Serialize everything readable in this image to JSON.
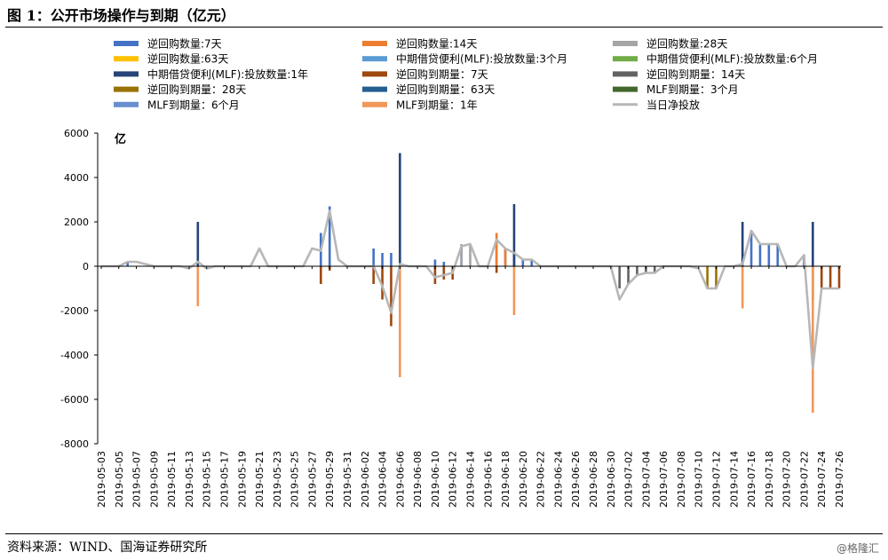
{
  "figure": {
    "title": "图 1：公开市场操作与到期（亿元）",
    "source": "资料来源：WIND、国海证券研究所",
    "watermark": "@格隆汇"
  },
  "chart_data": {
    "type": "bar",
    "unit_label": "亿",
    "ylim": [
      -8000,
      6000
    ],
    "yticks": [
      -8000,
      -6000,
      -4000,
      -2000,
      0,
      2000,
      4000,
      6000
    ],
    "grid": false,
    "legend_position": "top",
    "x_start": "2019-05-03",
    "x_end": "2019-07-26",
    "x_tick_labels": [
      "2019-05-03",
      "2019-05-05",
      "2019-05-07",
      "2019-05-09",
      "2019-05-11",
      "2019-05-13",
      "2019-05-15",
      "2019-05-17",
      "2019-05-19",
      "2019-05-21",
      "2019-05-23",
      "2019-05-25",
      "2019-05-27",
      "2019-05-29",
      "2019-05-31",
      "2019-06-02",
      "2019-06-04",
      "2019-06-06",
      "2019-06-08",
      "2019-06-10",
      "2019-06-12",
      "2019-06-14",
      "2019-06-16",
      "2019-06-18",
      "2019-06-20",
      "2019-06-22",
      "2019-06-24",
      "2019-06-26",
      "2019-06-28",
      "2019-06-30",
      "2019-07-02",
      "2019-07-04",
      "2019-07-06",
      "2019-07-08",
      "2019-07-10",
      "2019-07-12",
      "2019-07-14",
      "2019-07-16",
      "2019-07-18",
      "2019-07-20",
      "2019-07-22",
      "2019-07-24",
      "2019-07-26"
    ],
    "series": [
      {
        "name": "逆回购数量:7天",
        "type": "bar",
        "color": "#4472C4",
        "points": [
          [
            "2019-05-06",
            200
          ],
          [
            "2019-05-28",
            1500
          ],
          [
            "2019-05-29",
            2700
          ],
          [
            "2019-06-03",
            800
          ],
          [
            "2019-06-04",
            600
          ],
          [
            "2019-06-05",
            600
          ],
          [
            "2019-06-10",
            300
          ],
          [
            "2019-06-11",
            200
          ],
          [
            "2019-06-13",
            900
          ],
          [
            "2019-06-17",
            1000
          ],
          [
            "2019-06-18",
            800
          ],
          [
            "2019-06-19",
            600
          ],
          [
            "2019-06-20",
            300
          ],
          [
            "2019-06-21",
            300
          ],
          [
            "2019-07-16",
            1600
          ],
          [
            "2019-07-17",
            1000
          ],
          [
            "2019-07-18",
            1000
          ],
          [
            "2019-07-19",
            1000
          ],
          [
            "2019-07-22",
            500
          ]
        ]
      },
      {
        "name": "逆回购数量:14天",
        "type": "bar",
        "color": "#ED7D31",
        "points": [
          [
            "2019-06-17",
            1500
          ],
          [
            "2019-06-18",
            800
          ]
        ]
      },
      {
        "name": "逆回购数量:28天",
        "type": "bar",
        "color": "#A5A5A5",
        "points": [
          [
            "2019-06-13",
            1000
          ],
          [
            "2019-06-14",
            1000
          ]
        ]
      },
      {
        "name": "逆回购数量:63天",
        "type": "bar",
        "color": "#FFC000",
        "points": []
      },
      {
        "name": "中期借贷便利(MLF):投放数量:3个月",
        "type": "bar",
        "color": "#5B9BD5",
        "points": []
      },
      {
        "name": "中期借贷便利(MLF):投放数量:6个月",
        "type": "bar",
        "color": "#70AD47",
        "points": []
      },
      {
        "name": "中期借贷便利(MLF):投放数量:1年",
        "type": "bar",
        "color": "#264478",
        "points": [
          [
            "2019-05-14",
            2000
          ],
          [
            "2019-06-06",
            5100
          ],
          [
            "2019-06-19",
            2800
          ],
          [
            "2019-07-15",
            2000
          ],
          [
            "2019-07-23",
            2000
          ]
        ]
      },
      {
        "name": "逆回购到期量：7天",
        "type": "bar",
        "color": "#9E480E",
        "points": [
          [
            "2019-05-28",
            -800
          ],
          [
            "2019-05-29",
            -200
          ],
          [
            "2019-06-03",
            -800
          ],
          [
            "2019-06-04",
            -1500
          ],
          [
            "2019-06-05",
            -2700
          ],
          [
            "2019-06-10",
            -800
          ],
          [
            "2019-06-11",
            -600
          ],
          [
            "2019-06-12",
            -600
          ],
          [
            "2019-06-17",
            -300
          ],
          [
            "2019-07-23",
            -1500
          ],
          [
            "2019-07-24",
            -1000
          ],
          [
            "2019-07-25",
            -1000
          ],
          [
            "2019-07-26",
            -1000
          ]
        ]
      },
      {
        "name": "逆回购到期量：14天",
        "type": "bar",
        "color": "#636363",
        "points": [
          [
            "2019-07-01",
            -1000
          ],
          [
            "2019-07-02",
            -800
          ],
          [
            "2019-07-03",
            -400
          ],
          [
            "2019-07-04",
            -300
          ],
          [
            "2019-07-05",
            -300
          ]
        ]
      },
      {
        "name": "逆回购到期量：28天",
        "type": "bar",
        "color": "#997300",
        "points": [
          [
            "2019-07-11",
            -1000
          ],
          [
            "2019-07-12",
            -1000
          ]
        ]
      },
      {
        "name": "逆回购到期量：63天",
        "type": "bar",
        "color": "#255E91",
        "points": []
      },
      {
        "name": "MLF到期量：3个月",
        "type": "bar",
        "color": "#43682B",
        "points": []
      },
      {
        "name": "MLF到期量：6个月",
        "type": "bar",
        "color": "#698ED0",
        "points": []
      },
      {
        "name": "MLF到期量：1年",
        "type": "bar",
        "color": "#F1975A",
        "points": [
          [
            "2019-05-14",
            -1800
          ],
          [
            "2019-06-06",
            -5000
          ],
          [
            "2019-06-19",
            -2200
          ],
          [
            "2019-07-15",
            -1900
          ],
          [
            "2019-07-23",
            -6600
          ]
        ]
      },
      {
        "name": "当日净投放",
        "type": "line",
        "color": "#B7B7B7",
        "points": [
          [
            "2019-05-03",
            0
          ],
          [
            "2019-05-04",
            0
          ],
          [
            "2019-05-05",
            0
          ],
          [
            "2019-05-06",
            200
          ],
          [
            "2019-05-07",
            200
          ],
          [
            "2019-05-08",
            100
          ],
          [
            "2019-05-09",
            0
          ],
          [
            "2019-05-10",
            0
          ],
          [
            "2019-05-11",
            0
          ],
          [
            "2019-05-12",
            0
          ],
          [
            "2019-05-13",
            -100
          ],
          [
            "2019-05-14",
            200
          ],
          [
            "2019-05-15",
            -100
          ],
          [
            "2019-05-16",
            0
          ],
          [
            "2019-05-17",
            0
          ],
          [
            "2019-05-18",
            0
          ],
          [
            "2019-05-19",
            0
          ],
          [
            "2019-05-20",
            0
          ],
          [
            "2019-05-21",
            800
          ],
          [
            "2019-05-22",
            0
          ],
          [
            "2019-05-23",
            0
          ],
          [
            "2019-05-24",
            0
          ],
          [
            "2019-05-25",
            0
          ],
          [
            "2019-05-26",
            0
          ],
          [
            "2019-05-27",
            800
          ],
          [
            "2019-05-28",
            700
          ],
          [
            "2019-05-29",
            2500
          ],
          [
            "2019-05-30",
            300
          ],
          [
            "2019-05-31",
            0
          ],
          [
            "2019-06-01",
            0
          ],
          [
            "2019-06-02",
            0
          ],
          [
            "2019-06-03",
            0
          ],
          [
            "2019-06-04",
            -900
          ],
          [
            "2019-06-05",
            -2100
          ],
          [
            "2019-06-06",
            100
          ],
          [
            "2019-06-07",
            0
          ],
          [
            "2019-06-08",
            0
          ],
          [
            "2019-06-09",
            0
          ],
          [
            "2019-06-10",
            -500
          ],
          [
            "2019-06-11",
            -400
          ],
          [
            "2019-06-12",
            -300
          ],
          [
            "2019-06-13",
            900
          ],
          [
            "2019-06-14",
            1000
          ],
          [
            "2019-06-15",
            0
          ],
          [
            "2019-06-16",
            0
          ],
          [
            "2019-06-17",
            1200
          ],
          [
            "2019-06-18",
            800
          ],
          [
            "2019-06-19",
            600
          ],
          [
            "2019-06-20",
            300
          ],
          [
            "2019-06-21",
            300
          ],
          [
            "2019-06-22",
            0
          ],
          [
            "2019-06-23",
            0
          ],
          [
            "2019-06-24",
            0
          ],
          [
            "2019-06-25",
            0
          ],
          [
            "2019-06-26",
            0
          ],
          [
            "2019-06-27",
            0
          ],
          [
            "2019-06-28",
            0
          ],
          [
            "2019-06-29",
            0
          ],
          [
            "2019-06-30",
            0
          ],
          [
            "2019-07-01",
            -1500
          ],
          [
            "2019-07-02",
            -800
          ],
          [
            "2019-07-03",
            -400
          ],
          [
            "2019-07-04",
            -300
          ],
          [
            "2019-07-05",
            -300
          ],
          [
            "2019-07-06",
            0
          ],
          [
            "2019-07-07",
            0
          ],
          [
            "2019-07-08",
            0
          ],
          [
            "2019-07-09",
            0
          ],
          [
            "2019-07-10",
            -100
          ],
          [
            "2019-07-11",
            -1000
          ],
          [
            "2019-07-12",
            -1000
          ],
          [
            "2019-07-13",
            0
          ],
          [
            "2019-07-14",
            0
          ],
          [
            "2019-07-15",
            100
          ],
          [
            "2019-07-16",
            1600
          ],
          [
            "2019-07-17",
            1000
          ],
          [
            "2019-07-18",
            1000
          ],
          [
            "2019-07-19",
            1000
          ],
          [
            "2019-07-20",
            0
          ],
          [
            "2019-07-21",
            0
          ],
          [
            "2019-07-22",
            500
          ],
          [
            "2019-07-23",
            -4600
          ],
          [
            "2019-07-24",
            -1000
          ],
          [
            "2019-07-25",
            -1000
          ],
          [
            "2019-07-26",
            -1000
          ]
        ]
      }
    ]
  }
}
